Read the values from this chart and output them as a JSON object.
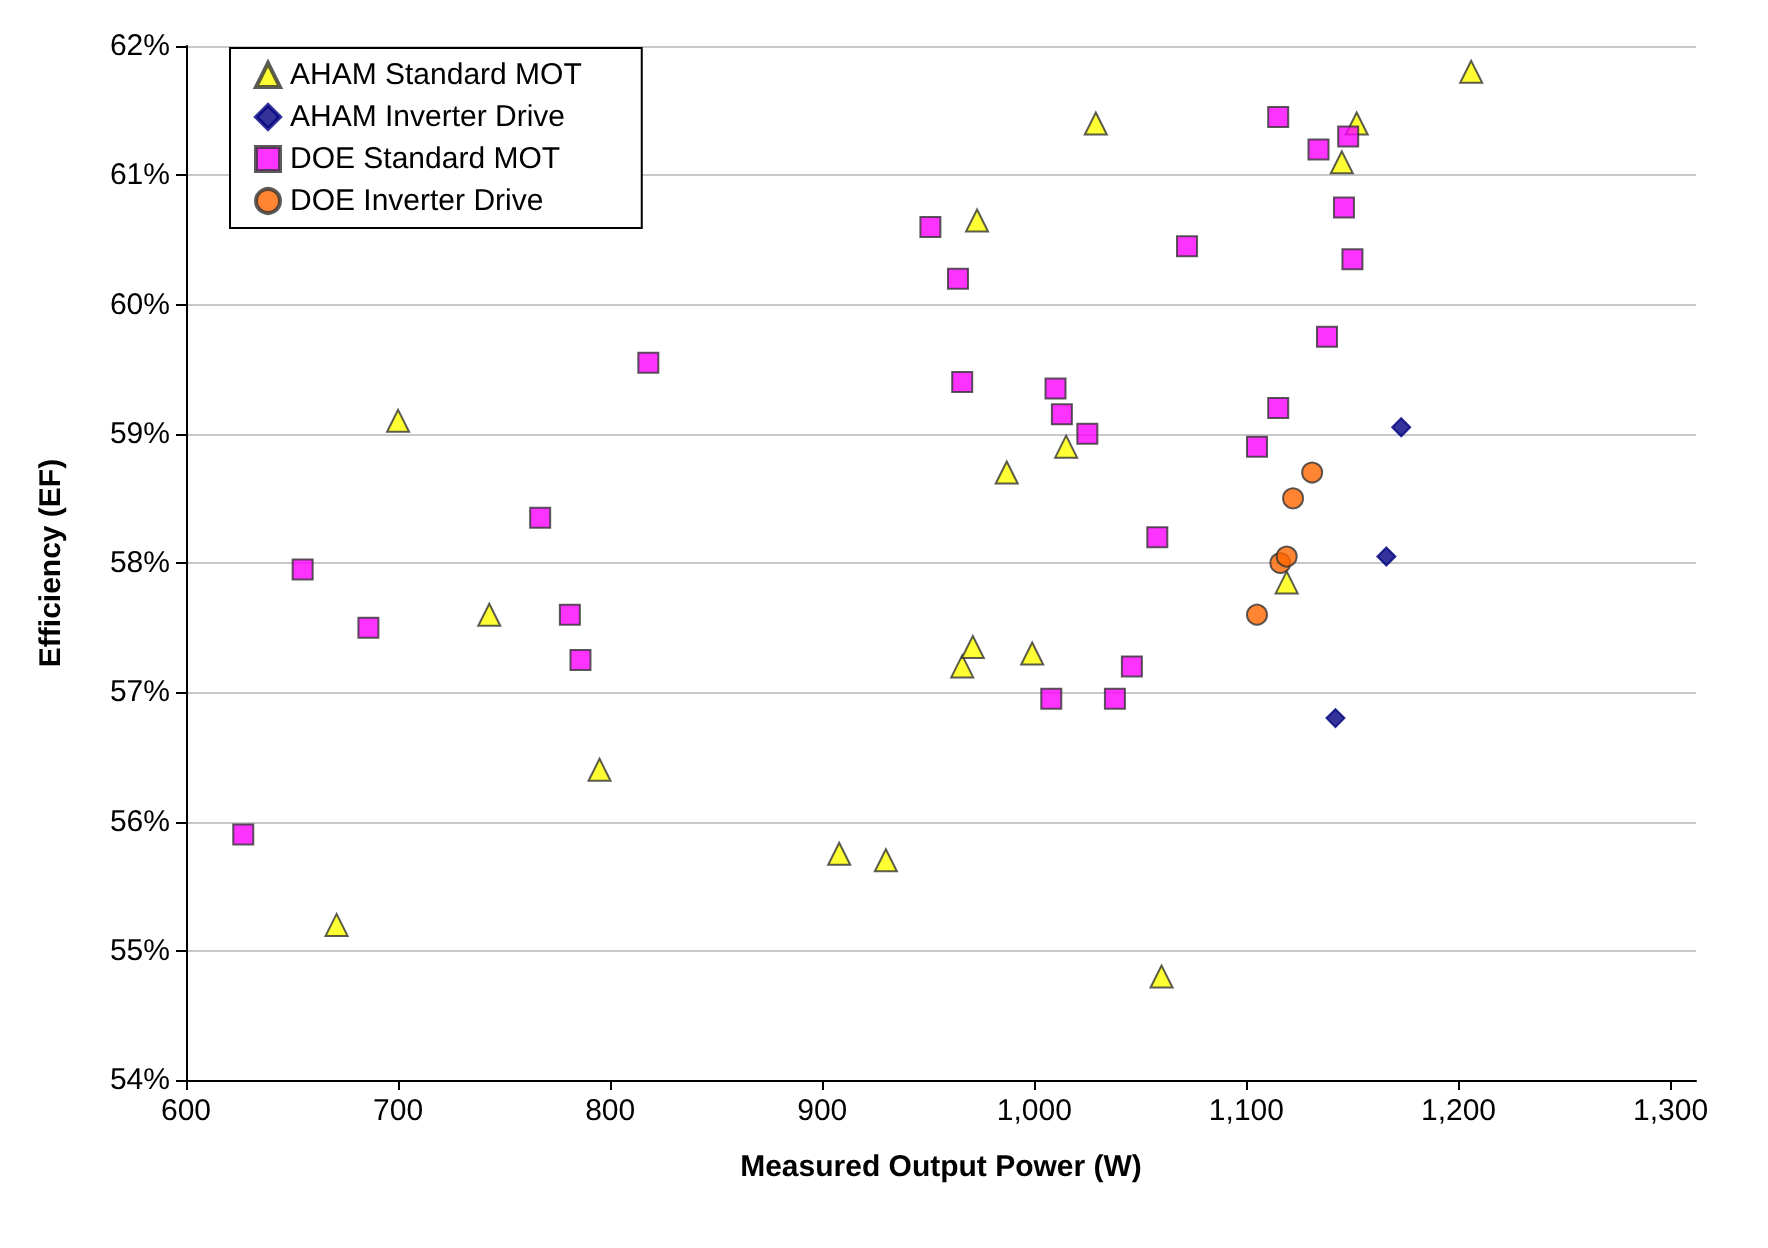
{
  "chart_data": {
    "type": "scatter",
    "xlabel": "Measured Output Power (W)",
    "ylabel": "Efficiency (EF)",
    "xlim": [
      600,
      1312
    ],
    "xticks": [
      600,
      700,
      800,
      900,
      {
        "value": 1000,
        "label": "1,000"
      },
      {
        "value": 1100,
        "label": "1,100"
      },
      {
        "value": 1200,
        "label": "1,200"
      },
      {
        "value": 1300,
        "label": "1,300"
      }
    ],
    "ylim": [
      54,
      62
    ],
    "yticks": [
      {
        "value": 54,
        "label": "54%"
      },
      {
        "value": 55,
        "label": "55%"
      },
      {
        "value": 56,
        "label": "56%"
      },
      {
        "value": 57,
        "label": "57%"
      },
      {
        "value": 58,
        "label": "58%"
      },
      {
        "value": 59,
        "label": "59%"
      },
      {
        "value": 60,
        "label": "60%"
      },
      {
        "value": 61,
        "label": "61%"
      },
      {
        "value": 62,
        "label": "62%"
      }
    ],
    "grid": "y",
    "legend": "top left",
    "series": [
      {
        "name": "AHAM Standard MOT",
        "color": "#ffff00",
        "marker": "triangle",
        "x": [
          671,
          700,
          743,
          795,
          908,
          930,
          966,
          971,
          973,
          987,
          999,
          1015,
          1029,
          1060,
          1119,
          1145,
          1152,
          1206
        ],
        "values": [
          55.2,
          59.1,
          57.6,
          56.4,
          55.75,
          55.7,
          57.2,
          57.35,
          60.65,
          58.7,
          57.3,
          58.9,
          61.4,
          54.8,
          57.85,
          61.1,
          61.4,
          61.8
        ]
      },
      {
        "name": "AHAM Inverter Drive",
        "color": "#000080",
        "marker": "diamond",
        "x": [
          1142,
          1166,
          1173
        ],
        "values": [
          56.8,
          58.05,
          59.05
        ]
      },
      {
        "name": "DOE Standard MOT",
        "color": "#ff00ff",
        "marker": "square",
        "x": [
          627,
          655,
          686,
          767,
          781,
          786,
          818,
          951,
          964,
          966,
          1010,
          1013,
          1008,
          1025,
          1038,
          1046,
          1058,
          1072,
          1105,
          1115,
          1115,
          1134,
          1138,
          1146,
          1148,
          1150
        ],
        "values": [
          55.9,
          57.95,
          57.5,
          58.35,
          57.6,
          57.25,
          59.55,
          60.6,
          60.2,
          59.4,
          59.35,
          59.15,
          56.95,
          59.0,
          56.95,
          57.2,
          58.2,
          60.45,
          58.9,
          59.2,
          61.45,
          61.2,
          59.75,
          60.75,
          61.3,
          60.35
        ]
      },
      {
        "name": "DOE Inverter Drive",
        "color": "#ff6600",
        "marker": "circle",
        "x": [
          1105,
          1116,
          1119,
          1122,
          1131
        ],
        "values": [
          57.6,
          58.0,
          58.05,
          58.5,
          58.7
        ]
      }
    ]
  }
}
